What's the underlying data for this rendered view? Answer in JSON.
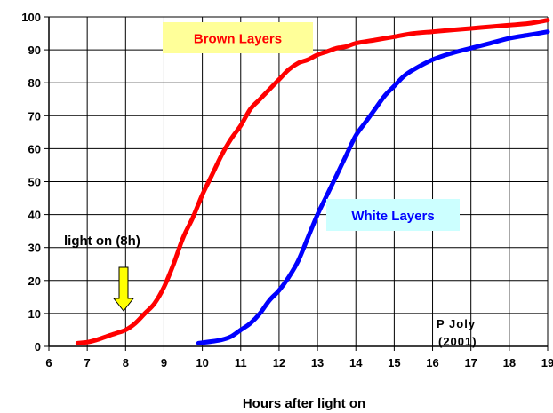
{
  "chart_data": {
    "type": "line",
    "title": "",
    "xlabel": "Hours after light on",
    "ylabel": "",
    "xlim": [
      6,
      19
    ],
    "ylim": [
      0,
      100
    ],
    "x_ticks": [
      "6",
      "7",
      "8",
      "9",
      "10",
      "11",
      "12",
      "13",
      "14",
      "15",
      "16",
      "17",
      "18",
      "19"
    ],
    "y_ticks": [
      "0",
      "10",
      "20",
      "30",
      "40",
      "50",
      "60",
      "70",
      "80",
      "90",
      "100"
    ],
    "grid": true,
    "series": [
      {
        "name": "Brown Layers",
        "color": "#ff0000",
        "label_bg": "#ffff99",
        "points": [
          [
            6.75,
            1
          ],
          [
            7.0,
            1.3
          ],
          [
            7.25,
            2
          ],
          [
            7.5,
            3
          ],
          [
            7.75,
            4
          ],
          [
            8.0,
            5
          ],
          [
            8.25,
            7
          ],
          [
            8.5,
            10
          ],
          [
            8.75,
            13
          ],
          [
            9.0,
            18
          ],
          [
            9.25,
            25
          ],
          [
            9.5,
            33
          ],
          [
            9.75,
            39
          ],
          [
            10.0,
            46
          ],
          [
            10.25,
            52
          ],
          [
            10.5,
            58
          ],
          [
            10.75,
            63
          ],
          [
            11.0,
            67
          ],
          [
            11.25,
            72
          ],
          [
            11.5,
            75
          ],
          [
            11.75,
            78
          ],
          [
            12.0,
            81
          ],
          [
            12.25,
            84
          ],
          [
            12.5,
            86
          ],
          [
            12.75,
            87
          ],
          [
            13.0,
            88.5
          ],
          [
            13.25,
            89.5
          ],
          [
            13.5,
            90.5
          ],
          [
            13.75,
            91
          ],
          [
            14.0,
            92
          ],
          [
            14.5,
            93
          ],
          [
            15.0,
            94
          ],
          [
            15.5,
            95
          ],
          [
            16.0,
            95.5
          ],
          [
            16.5,
            96
          ],
          [
            17.0,
            96.5
          ],
          [
            17.5,
            97
          ],
          [
            18.0,
            97.5
          ],
          [
            18.5,
            98
          ],
          [
            19.0,
            99
          ]
        ]
      },
      {
        "name": "White Layers",
        "color": "#0000ff",
        "label_bg": "#ccffff",
        "points": [
          [
            9.9,
            1
          ],
          [
            10.25,
            1.5
          ],
          [
            10.5,
            2
          ],
          [
            10.75,
            3
          ],
          [
            11.0,
            5
          ],
          [
            11.25,
            7
          ],
          [
            11.5,
            10
          ],
          [
            11.75,
            14
          ],
          [
            12.0,
            17
          ],
          [
            12.25,
            21
          ],
          [
            12.5,
            26
          ],
          [
            12.75,
            33
          ],
          [
            13.0,
            40
          ],
          [
            13.25,
            46
          ],
          [
            13.5,
            52
          ],
          [
            13.75,
            58
          ],
          [
            14.0,
            64
          ],
          [
            14.25,
            68
          ],
          [
            14.5,
            72
          ],
          [
            14.75,
            76
          ],
          [
            15.0,
            79
          ],
          [
            15.25,
            82
          ],
          [
            15.5,
            84
          ],
          [
            16.0,
            87
          ],
          [
            16.5,
            89
          ],
          [
            17.0,
            90.5
          ],
          [
            17.5,
            92
          ],
          [
            18.0,
            93.5
          ],
          [
            18.5,
            94.5
          ],
          [
            19.0,
            95.5
          ]
        ]
      }
    ],
    "annotations": {
      "light_on": {
        "text": "light on (8h)",
        "x": 8,
        "y": 5,
        "arrow_color": "#ffff00"
      },
      "credit_name": "P Joly",
      "credit_year": "(2001)"
    }
  }
}
